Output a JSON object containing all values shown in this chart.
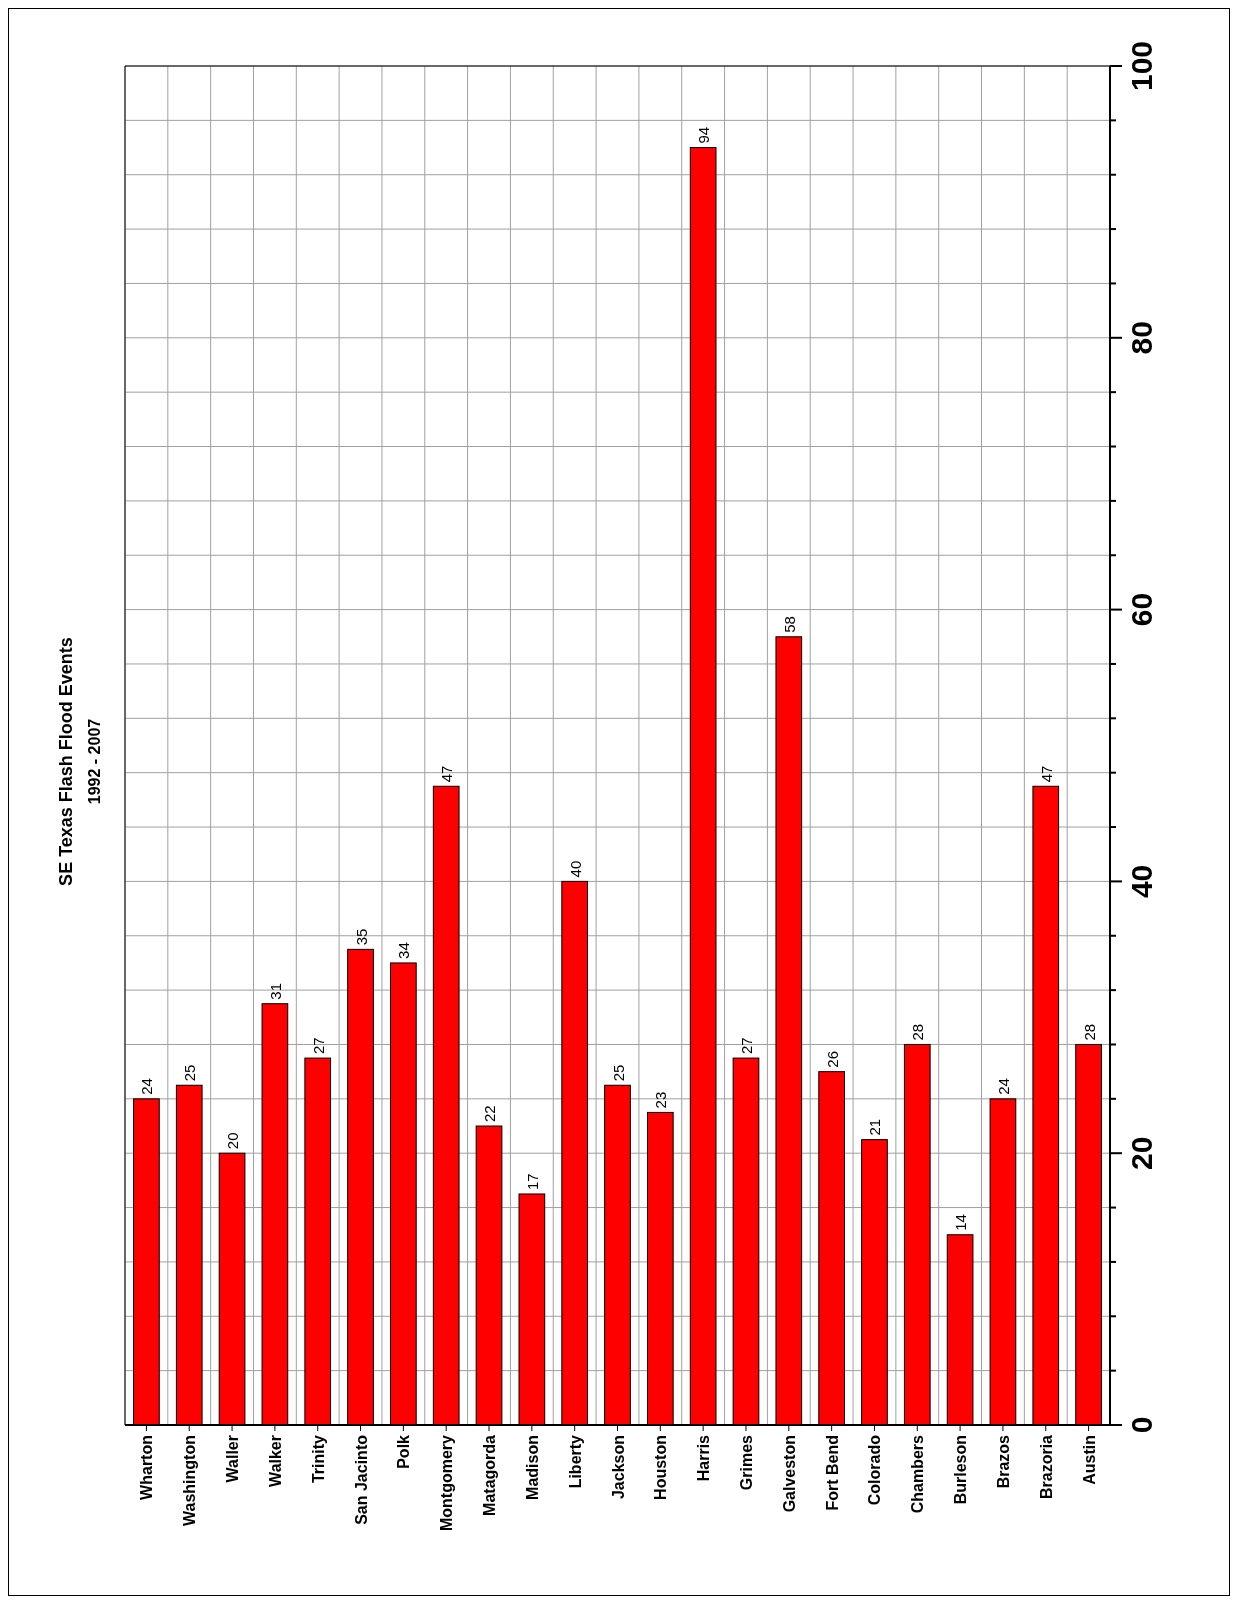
{
  "chart_data": {
    "type": "bar",
    "title": "SE Texas Flash Flood Events",
    "subtitle": "1992 - 2007",
    "categories": [
      "Wharton",
      "Washington",
      "Waller",
      "Walker",
      "Trinity",
      "San Jacinto",
      "Polk",
      "Montgomery",
      "Matagorda",
      "Madison",
      "Liberty",
      "Jackson",
      "Houston",
      "Harris",
      "Grimes",
      "Galveston",
      "Fort Bend",
      "Colorado",
      "Chambers",
      "Burleson",
      "Brazos",
      "Brazoria",
      "Austin"
    ],
    "values": [
      24,
      25,
      20,
      31,
      27,
      35,
      34,
      47,
      22,
      17,
      40,
      25,
      23,
      94,
      27,
      58,
      26,
      21,
      28,
      14,
      24,
      47,
      28
    ],
    "color": "#ff0000",
    "data_labels": true,
    "grid": true,
    "ylim": [
      0,
      100
    ],
    "yticks": [
      0,
      {
        "value": 4,
        "label": null
      },
      {
        "value": 8,
        "label": null
      },
      {
        "value": 12,
        "label": null
      },
      {
        "value": 16,
        "label": null
      },
      20,
      {
        "value": 24,
        "label": null
      },
      {
        "value": 28,
        "label": null
      },
      {
        "value": 32,
        "label": null
      },
      {
        "value": 36,
        "label": null
      },
      40,
      {
        "value": 44,
        "label": null
      },
      {
        "value": 48,
        "label": null
      },
      {
        "value": 52,
        "label": null
      },
      {
        "value": 56,
        "label": null
      },
      60,
      {
        "value": 64,
        "label": null
      },
      {
        "value": 68,
        "label": null
      },
      {
        "value": 72,
        "label": null
      },
      {
        "value": 76,
        "label": null
      },
      80,
      {
        "value": 84,
        "label": null
      },
      {
        "value": 88,
        "label": null
      },
      {
        "value": 92,
        "label": null
      },
      {
        "value": 96,
        "label": null
      },
      100
    ]
  }
}
